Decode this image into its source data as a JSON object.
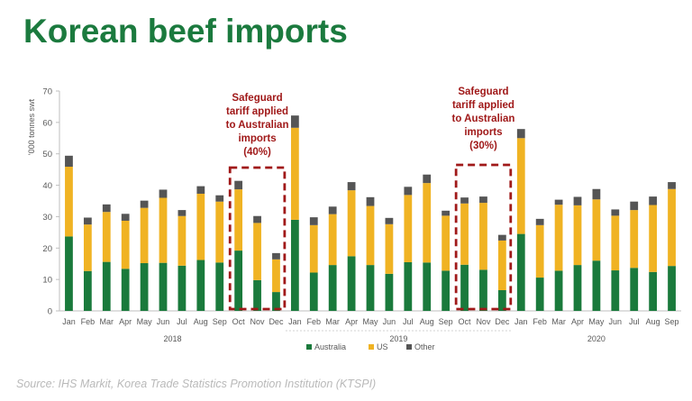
{
  "title": "Korean beef imports",
  "source": "Source: IHS Markit, Korea Trade Statistics Promotion Institution (KTSPI)",
  "colors": {
    "title": "#1b7a3e",
    "australia": "#1a7a3c",
    "us": "#f0b323",
    "other": "#555555",
    "annotation": "#a01919",
    "axis_text": "#595959"
  },
  "chart_data": {
    "type": "bar",
    "stacked": true,
    "ylabel": "'000 tonnes swt",
    "ylim": [
      0,
      70
    ],
    "yticks": [
      0,
      10,
      20,
      30,
      40,
      50,
      60,
      70
    ],
    "categories": [
      "Jan",
      "Feb",
      "Mar",
      "Apr",
      "May",
      "Jun",
      "Jul",
      "Aug",
      "Sep",
      "Oct",
      "Nov",
      "Dec",
      "Jan",
      "Feb",
      "Mar",
      "Apr",
      "May",
      "Jun",
      "Jul",
      "Aug",
      "Sep",
      "Oct",
      "Nov",
      "Dec",
      "Jan",
      "Feb",
      "Mar",
      "Apr",
      "May",
      "Jun",
      "Jul",
      "Aug",
      "Sep"
    ],
    "year_groups": [
      {
        "label": "2018",
        "start": 0,
        "end": 11
      },
      {
        "label": "2019",
        "start": 12,
        "end": 23
      },
      {
        "label": "2020",
        "start": 24,
        "end": 32
      }
    ],
    "series": [
      {
        "name": "Australia",
        "values": [
          23.7,
          12.7,
          15.6,
          13.4,
          15.2,
          15.3,
          14.4,
          16.2,
          15.4,
          19.2,
          9.8,
          6.0,
          29.0,
          12.2,
          14.6,
          17.4,
          14.6,
          11.8,
          15.5,
          15.4,
          12.8,
          14.7,
          13.1,
          6.6,
          24.5,
          10.6,
          12.8,
          14.6,
          16.0,
          12.9,
          13.7,
          12.4,
          14.3
        ]
      },
      {
        "name": "US",
        "values": [
          22.2,
          14.8,
          15.9,
          15.3,
          17.6,
          20.7,
          15.8,
          21.1,
          19.4,
          19.5,
          18.2,
          10.4,
          29.3,
          15.1,
          16.2,
          21.0,
          18.8,
          15.8,
          21.4,
          25.3,
          17.5,
          19.5,
          21.3,
          15.8,
          30.5,
          16.7,
          21.0,
          19.0,
          19.5,
          17.4,
          18.4,
          21.3,
          24.5
        ]
      },
      {
        "name": "Other",
        "values": [
          3.5,
          2.2,
          2.4,
          2.2,
          2.3,
          2.6,
          1.9,
          2.4,
          2.0,
          2.7,
          2.2,
          2.0,
          3.9,
          2.5,
          2.4,
          2.6,
          2.8,
          2.0,
          2.6,
          2.7,
          1.6,
          1.9,
          2.0,
          1.8,
          2.9,
          2.0,
          1.6,
          2.7,
          3.3,
          2.0,
          2.7,
          2.7,
          2.2
        ]
      }
    ],
    "legend_position": "bottom-center",
    "grid": false,
    "annotations": [
      {
        "lines": [
          "Safeguard",
          "tariff applied",
          "to Australian",
          "imports",
          "(40%)"
        ],
        "box_start": 9,
        "box_end": 11
      },
      {
        "lines": [
          "Safeguard",
          "tariff applied",
          "to Australian",
          "imports",
          "(30%)"
        ],
        "box_start": 21,
        "box_end": 23
      }
    ]
  }
}
